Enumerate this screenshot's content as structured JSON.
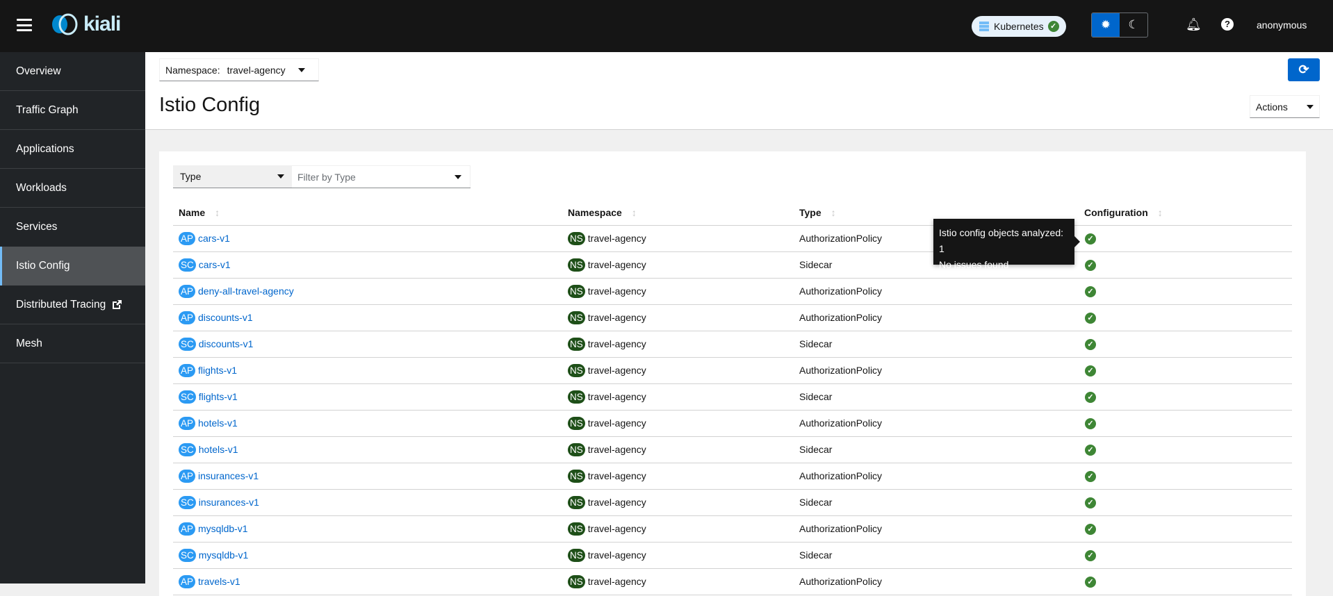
{
  "topbar": {
    "logo": "kiali",
    "cluster": "Kubernetes",
    "user": "anonymous",
    "icons": [
      "menu-icon",
      "sun-icon",
      "moon-icon",
      "bell-icon",
      "help-icon"
    ]
  },
  "sidebar": {
    "items": [
      {
        "label": "Overview"
      },
      {
        "label": "Traffic Graph"
      },
      {
        "label": "Applications"
      },
      {
        "label": "Workloads"
      },
      {
        "label": "Services"
      },
      {
        "label": "Istio Config",
        "active": true
      },
      {
        "label": "Distributed Tracing",
        "external": true
      },
      {
        "label": "Mesh"
      }
    ]
  },
  "header": {
    "namespace_label": "Namespace:",
    "namespace_value": "travel-agency",
    "title": "Istio Config",
    "actions_label": "Actions"
  },
  "filter": {
    "type_label": "Type",
    "placeholder": "Filter by Type"
  },
  "table": {
    "columns": [
      "Name",
      "Namespace",
      "Type",
      "Configuration"
    ],
    "rows": [
      {
        "badge": "AP",
        "name": "cars-v1",
        "ns_badge": "NS",
        "namespace": "travel-agency",
        "type": "AuthorizationPolicy",
        "config": "valid"
      },
      {
        "badge": "SC",
        "name": "cars-v1",
        "ns_badge": "NS",
        "namespace": "travel-agency",
        "type": "Sidecar",
        "config": "valid"
      },
      {
        "badge": "AP",
        "name": "deny-all-travel-agency",
        "ns_badge": "NS",
        "namespace": "travel-agency",
        "type": "AuthorizationPolicy",
        "config": "valid"
      },
      {
        "badge": "AP",
        "name": "discounts-v1",
        "ns_badge": "NS",
        "namespace": "travel-agency",
        "type": "AuthorizationPolicy",
        "config": "valid"
      },
      {
        "badge": "SC",
        "name": "discounts-v1",
        "ns_badge": "NS",
        "namespace": "travel-agency",
        "type": "Sidecar",
        "config": "valid"
      },
      {
        "badge": "AP",
        "name": "flights-v1",
        "ns_badge": "NS",
        "namespace": "travel-agency",
        "type": "AuthorizationPolicy",
        "config": "valid"
      },
      {
        "badge": "SC",
        "name": "flights-v1",
        "ns_badge": "NS",
        "namespace": "travel-agency",
        "type": "Sidecar",
        "config": "valid"
      },
      {
        "badge": "AP",
        "name": "hotels-v1",
        "ns_badge": "NS",
        "namespace": "travel-agency",
        "type": "AuthorizationPolicy",
        "config": "valid"
      },
      {
        "badge": "SC",
        "name": "hotels-v1",
        "ns_badge": "NS",
        "namespace": "travel-agency",
        "type": "Sidecar",
        "config": "valid"
      },
      {
        "badge": "AP",
        "name": "insurances-v1",
        "ns_badge": "NS",
        "namespace": "travel-agency",
        "type": "AuthorizationPolicy",
        "config": "valid"
      },
      {
        "badge": "SC",
        "name": "insurances-v1",
        "ns_badge": "NS",
        "namespace": "travel-agency",
        "type": "Sidecar",
        "config": "valid"
      },
      {
        "badge": "AP",
        "name": "mysqldb-v1",
        "ns_badge": "NS",
        "namespace": "travel-agency",
        "type": "AuthorizationPolicy",
        "config": "valid"
      },
      {
        "badge": "SC",
        "name": "mysqldb-v1",
        "ns_badge": "NS",
        "namespace": "travel-agency",
        "type": "Sidecar",
        "config": "valid"
      },
      {
        "badge": "AP",
        "name": "travels-v1",
        "ns_badge": "NS",
        "namespace": "travel-agency",
        "type": "AuthorizationPolicy",
        "config": "valid"
      }
    ]
  },
  "tooltip": {
    "line1": "Istio config objects analyzed: 1",
    "line2": "No issues found"
  },
  "colors": {
    "accent": "#0066cc",
    "badge_blue": "#2b9af3",
    "ns_green": "#1e4f18",
    "ok_green": "#3e8635",
    "topbar": "#151515",
    "sidebar": "#212427"
  }
}
